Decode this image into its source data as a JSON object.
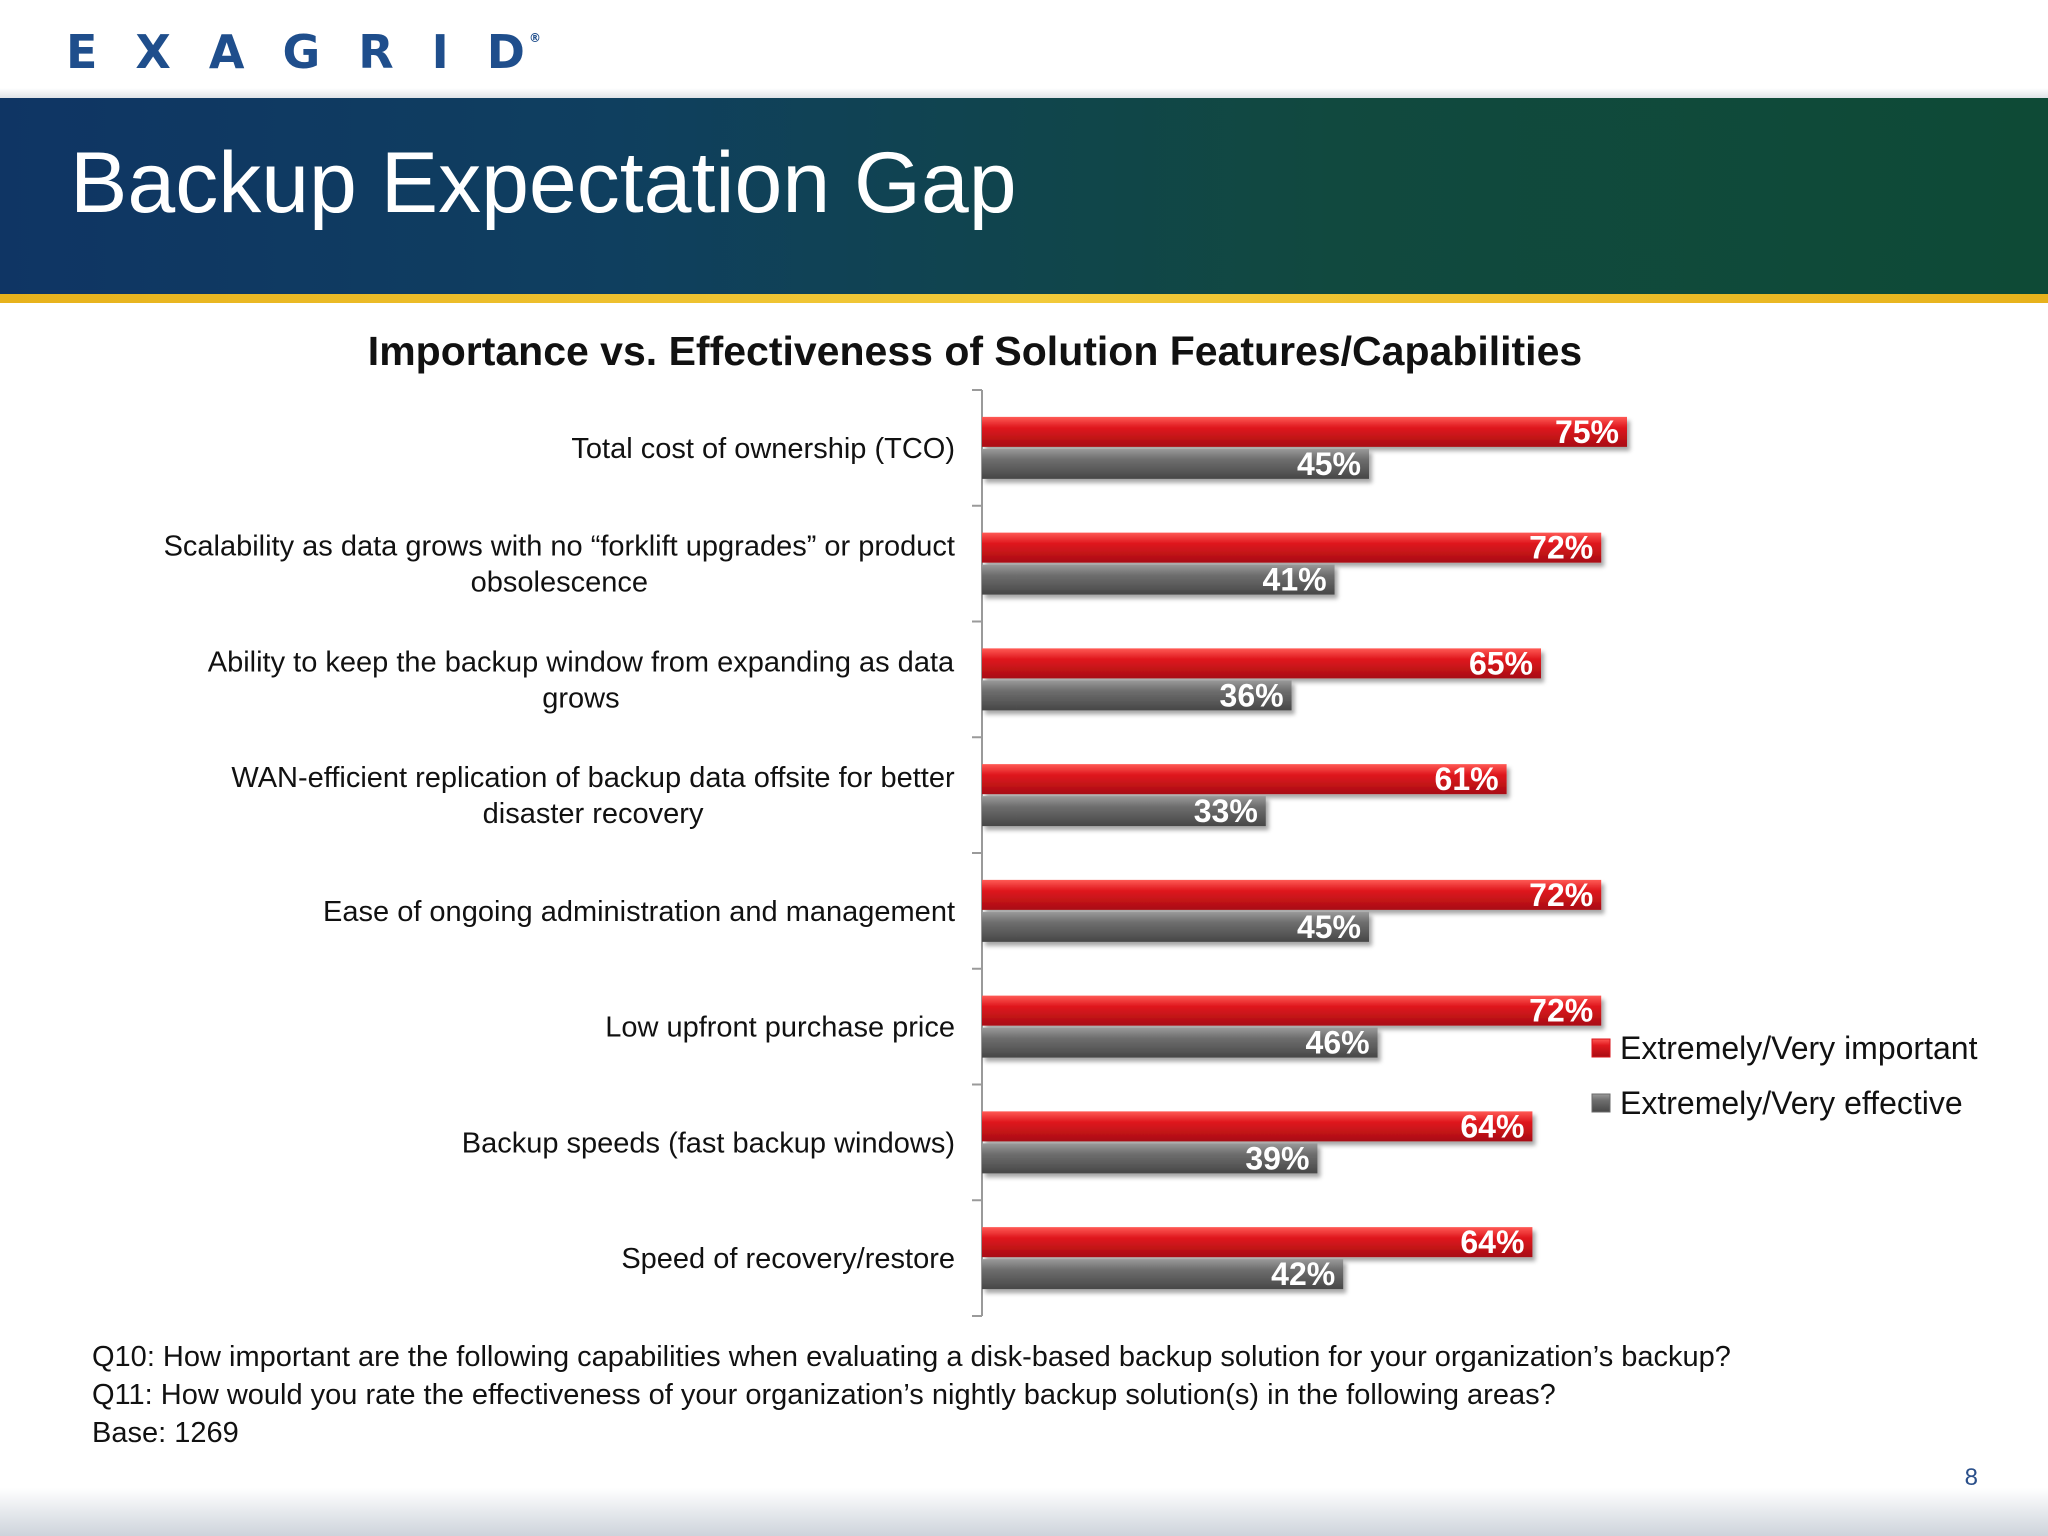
{
  "logo": {
    "text": "EXAGRID",
    "mark": "®"
  },
  "slide": {
    "title": "Backup Expectation Gap",
    "page_number": "8"
  },
  "notes": [
    "Q10:  How important are the following capabilities when evaluating a disk-based backup solution for your organization’s  backup?",
    "Q11:  How would you rate the effectiveness of your organization’s nightly backup solution(s) in the following areas?",
    " Base: 1269"
  ],
  "colors": {
    "important": "#d9161d",
    "effective": "#6b6b6b"
  },
  "chart_data": {
    "type": "bar",
    "orientation": "horizontal",
    "title": "Importance vs. Effectiveness of Solution Features/Capabilities",
    "categories": [
      "Total cost of ownership (TCO)",
      "Scalability as data grows with no “forklift upgrades” or product obsolescence",
      "Ability to keep the backup window from expanding as data grows",
      "WAN-efficient replication of backup data offsite for better disaster recovery",
      "Ease of ongoing administration and management",
      "Low upfront purchase price",
      "Backup speeds (fast backup windows)",
      "Speed of recovery/restore"
    ],
    "category_lines": [
      [
        "Total cost of ownership (TCO)"
      ],
      [
        "Scalability as data grows with no “forklift upgrades” or product",
        "obsolescence"
      ],
      [
        "Ability to keep the backup window from expanding as data",
        "grows"
      ],
      [
        "WAN-efficient replication of backup data offsite for better",
        "disaster recovery"
      ],
      [
        "Ease of ongoing administration and management"
      ],
      [
        "Low upfront purchase price"
      ],
      [
        "Backup speeds (fast backup windows)"
      ],
      [
        "Speed of recovery/restore"
      ]
    ],
    "series": [
      {
        "name": "Extremely/Very important",
        "values": [
          75,
          72,
          65,
          61,
          72,
          72,
          64,
          64
        ],
        "labels": [
          "75%",
          "72%",
          "65%",
          "61%",
          "72%",
          "72%",
          "64%",
          "64%"
        ]
      },
      {
        "name": "Extremely/Very effective",
        "values": [
          45,
          41,
          36,
          33,
          45,
          46,
          39,
          42
        ],
        "labels": [
          "45%",
          "41%",
          "36%",
          "33%",
          "45%",
          "46%",
          "39%",
          "42%"
        ]
      }
    ],
    "xlim": [
      0,
      100
    ],
    "grid": false,
    "legend": "right"
  }
}
